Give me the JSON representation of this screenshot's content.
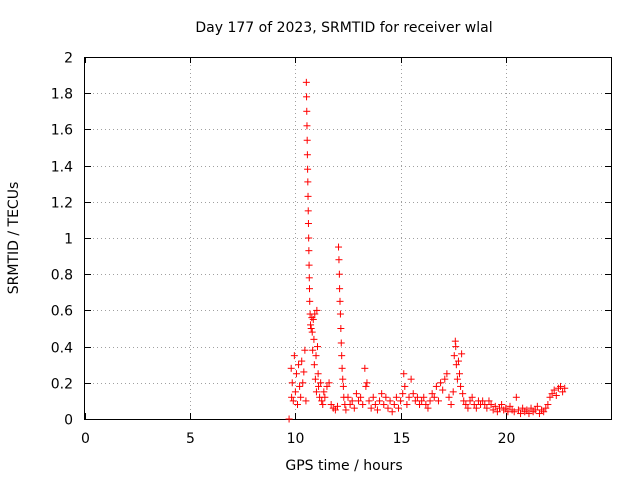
{
  "chart_data": {
    "type": "scatter",
    "title": "Day 177 of 2023, SRMTID for receiver wlal",
    "xlabel": "GPS time / hours",
    "ylabel": "SRMTID / TECUs",
    "xlim": [
      0,
      25
    ],
    "ylim": [
      0,
      2
    ],
    "x_ticks": [
      0,
      5,
      10,
      15,
      20
    ],
    "x_tick_labels": [
      "0",
      "5",
      "10",
      "15",
      "20"
    ],
    "y_ticks": [
      0,
      0.2,
      0.4,
      0.6,
      0.8,
      1,
      1.2,
      1.4,
      1.6,
      1.8,
      2
    ],
    "y_tick_labels": [
      "0",
      "0.2",
      "0.4",
      "0.6",
      "0.8",
      "1",
      "1.2",
      "1.4",
      "1.6",
      "1.8",
      "2"
    ],
    "grid": true,
    "marker": "+",
    "color": "#ff0000",
    "series": [
      {
        "name": "SRMTID",
        "points": [
          [
            9.7,
            0.0
          ],
          [
            9.8,
            0.28
          ],
          [
            9.82,
            0.12
          ],
          [
            9.85,
            0.2
          ],
          [
            9.9,
            0.1
          ],
          [
            9.95,
            0.35
          ],
          [
            10.0,
            0.15
          ],
          [
            10.05,
            0.25
          ],
          [
            10.1,
            0.08
          ],
          [
            10.15,
            0.3
          ],
          [
            10.2,
            0.18
          ],
          [
            10.25,
            0.12
          ],
          [
            10.3,
            0.32
          ],
          [
            10.35,
            0.2
          ],
          [
            10.4,
            0.26
          ],
          [
            10.45,
            0.38
          ],
          [
            10.5,
            0.1
          ],
          [
            10.52,
            1.86
          ],
          [
            10.53,
            1.78
          ],
          [
            10.54,
            1.7
          ],
          [
            10.55,
            1.62
          ],
          [
            10.56,
            1.54
          ],
          [
            10.57,
            1.46
          ],
          [
            10.58,
            1.38
          ],
          [
            10.59,
            1.31
          ],
          [
            10.6,
            1.23
          ],
          [
            10.61,
            1.15
          ],
          [
            10.62,
            1.08
          ],
          [
            10.63,
            1.0
          ],
          [
            10.64,
            0.93
          ],
          [
            10.65,
            0.85
          ],
          [
            10.66,
            0.78
          ],
          [
            10.67,
            0.72
          ],
          [
            10.68,
            0.65
          ],
          [
            10.7,
            0.58
          ],
          [
            10.72,
            0.52
          ],
          [
            10.75,
            0.5
          ],
          [
            10.78,
            0.56
          ],
          [
            10.8,
            0.48
          ],
          [
            10.82,
            0.38
          ],
          [
            10.85,
            0.55
          ],
          [
            10.88,
            0.44
          ],
          [
            10.9,
            0.3
          ],
          [
            10.92,
            0.58
          ],
          [
            10.95,
            0.22
          ],
          [
            10.98,
            0.35
          ],
          [
            11.0,
            0.15
          ],
          [
            11.02,
            0.6
          ],
          [
            11.05,
            0.4
          ],
          [
            11.08,
            0.25
          ],
          [
            11.1,
            0.18
          ],
          [
            11.15,
            0.12
          ],
          [
            11.2,
            0.2
          ],
          [
            11.25,
            0.1
          ],
          [
            11.3,
            0.08
          ],
          [
            11.35,
            0.15
          ],
          [
            11.4,
            0.12
          ],
          [
            11.5,
            0.18
          ],
          [
            11.6,
            0.2
          ],
          [
            11.7,
            0.08
          ],
          [
            11.8,
            0.06
          ],
          [
            11.9,
            0.05
          ],
          [
            12.0,
            0.07
          ],
          [
            12.05,
            0.95
          ],
          [
            12.07,
            0.88
          ],
          [
            12.09,
            0.8
          ],
          [
            12.1,
            0.72
          ],
          [
            12.12,
            0.65
          ],
          [
            12.14,
            0.58
          ],
          [
            12.16,
            0.5
          ],
          [
            12.18,
            0.42
          ],
          [
            12.2,
            0.35
          ],
          [
            12.22,
            0.28
          ],
          [
            12.25,
            0.22
          ],
          [
            12.28,
            0.18
          ],
          [
            12.3,
            0.12
          ],
          [
            12.35,
            0.08
          ],
          [
            12.4,
            0.05
          ],
          [
            12.5,
            0.12
          ],
          [
            12.6,
            0.08
          ],
          [
            12.7,
            0.1
          ],
          [
            12.8,
            0.06
          ],
          [
            12.9,
            0.14
          ],
          [
            13.0,
            0.1
          ],
          [
            13.1,
            0.12
          ],
          [
            13.2,
            0.08
          ],
          [
            13.3,
            0.28
          ],
          [
            13.35,
            0.18
          ],
          [
            13.4,
            0.2
          ],
          [
            13.5,
            0.1
          ],
          [
            13.6,
            0.06
          ],
          [
            13.7,
            0.12
          ],
          [
            13.8,
            0.08
          ],
          [
            13.9,
            0.05
          ],
          [
            14.0,
            0.1
          ],
          [
            14.1,
            0.14
          ],
          [
            14.2,
            0.08
          ],
          [
            14.3,
            0.12
          ],
          [
            14.4,
            0.06
          ],
          [
            14.5,
            0.1
          ],
          [
            14.6,
            0.04
          ],
          [
            14.7,
            0.08
          ],
          [
            14.8,
            0.12
          ],
          [
            14.9,
            0.06
          ],
          [
            15.0,
            0.1
          ],
          [
            15.1,
            0.14
          ],
          [
            15.15,
            0.25
          ],
          [
            15.2,
            0.18
          ],
          [
            15.3,
            0.08
          ],
          [
            15.4,
            0.12
          ],
          [
            15.5,
            0.22
          ],
          [
            15.6,
            0.14
          ],
          [
            15.7,
            0.1
          ],
          [
            15.8,
            0.12
          ],
          [
            15.9,
            0.08
          ],
          [
            16.0,
            0.1
          ],
          [
            16.1,
            0.12
          ],
          [
            16.2,
            0.08
          ],
          [
            16.3,
            0.06
          ],
          [
            16.4,
            0.1
          ],
          [
            16.5,
            0.14
          ],
          [
            16.6,
            0.12
          ],
          [
            16.7,
            0.18
          ],
          [
            16.8,
            0.1
          ],
          [
            16.9,
            0.2
          ],
          [
            17.0,
            0.16
          ],
          [
            17.1,
            0.22
          ],
          [
            17.2,
            0.25
          ],
          [
            17.3,
            0.12
          ],
          [
            17.4,
            0.08
          ],
          [
            17.5,
            0.15
          ],
          [
            17.55,
            0.35
          ],
          [
            17.6,
            0.43
          ],
          [
            17.62,
            0.4
          ],
          [
            17.65,
            0.3
          ],
          [
            17.7,
            0.22
          ],
          [
            17.75,
            0.32
          ],
          [
            17.8,
            0.25
          ],
          [
            17.85,
            0.18
          ],
          [
            17.9,
            0.36
          ],
          [
            17.95,
            0.14
          ],
          [
            18.0,
            0.1
          ],
          [
            18.1,
            0.08
          ],
          [
            18.2,
            0.06
          ],
          [
            18.3,
            0.1
          ],
          [
            18.4,
            0.12
          ],
          [
            18.5,
            0.08
          ],
          [
            18.6,
            0.06
          ],
          [
            18.7,
            0.1
          ],
          [
            18.8,
            0.08
          ],
          [
            18.9,
            0.1
          ],
          [
            19.0,
            0.08
          ],
          [
            19.1,
            0.06
          ],
          [
            19.2,
            0.1
          ],
          [
            19.3,
            0.08
          ],
          [
            19.4,
            0.05
          ],
          [
            19.5,
            0.07
          ],
          [
            19.6,
            0.04
          ],
          [
            19.7,
            0.06
          ],
          [
            19.8,
            0.08
          ],
          [
            19.9,
            0.05
          ],
          [
            20.0,
            0.06
          ],
          [
            20.1,
            0.04
          ],
          [
            20.2,
            0.07
          ],
          [
            20.3,
            0.05
          ],
          [
            20.4,
            0.04
          ],
          [
            20.5,
            0.12
          ],
          [
            20.6,
            0.05
          ],
          [
            20.7,
            0.03
          ],
          [
            20.8,
            0.06
          ],
          [
            20.9,
            0.04
          ],
          [
            21.0,
            0.05
          ],
          [
            21.1,
            0.03
          ],
          [
            21.2,
            0.06
          ],
          [
            21.3,
            0.04
          ],
          [
            21.4,
            0.05
          ],
          [
            21.5,
            0.07
          ],
          [
            21.6,
            0.03
          ],
          [
            21.7,
            0.05
          ],
          [
            21.8,
            0.04
          ],
          [
            21.9,
            0.06
          ],
          [
            22.0,
            0.08
          ],
          [
            22.1,
            0.12
          ],
          [
            22.2,
            0.14
          ],
          [
            22.3,
            0.16
          ],
          [
            22.4,
            0.13
          ],
          [
            22.5,
            0.17
          ],
          [
            22.6,
            0.18
          ],
          [
            22.7,
            0.15
          ],
          [
            22.8,
            0.17
          ]
        ]
      }
    ]
  }
}
